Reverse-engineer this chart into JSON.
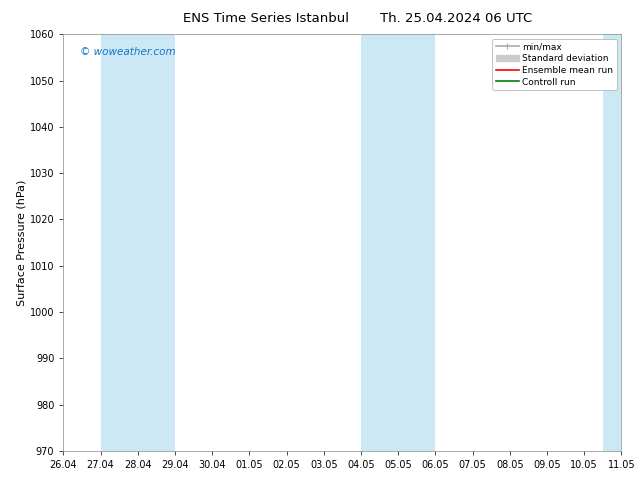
{
  "title_left": "ENS Time Series Istanbul",
  "title_right": "Th. 25.04.2024 06 UTC",
  "ylabel": "Surface Pressure (hPa)",
  "ylim": [
    970,
    1060
  ],
  "yticks": [
    970,
    980,
    990,
    1000,
    1010,
    1020,
    1030,
    1040,
    1050,
    1060
  ],
  "xtick_labels": [
    "26.04",
    "27.04",
    "28.04",
    "29.04",
    "30.04",
    "01.05",
    "02.05",
    "03.05",
    "04.05",
    "05.05",
    "06.05",
    "07.05",
    "08.05",
    "09.05",
    "10.05",
    "11.05"
  ],
  "xlim": [
    0,
    15
  ],
  "shaded_regions": [
    {
      "xmin": 1,
      "xmax": 3,
      "color": "#cce8f4"
    },
    {
      "xmin": 8,
      "xmax": 10,
      "color": "#cce8f4"
    }
  ],
  "right_shaded_region": {
    "xmin": 14.5,
    "xmax": 15,
    "color": "#cce8f4"
  },
  "watermark": "© woweather.com",
  "watermark_color": "#1a75cc",
  "background_color": "#ffffff",
  "plot_bg_color": "#ffffff",
  "legend_entries": [
    {
      "label": "min/max",
      "color": "#aaaaaa",
      "lw": 1.2,
      "ls": "-"
    },
    {
      "label": "Standard deviation",
      "color": "#cccccc",
      "lw": 7,
      "ls": "-"
    },
    {
      "label": "Ensemble mean run",
      "color": "#ff0000",
      "lw": 1.2,
      "ls": "-"
    },
    {
      "label": "Controll run",
      "color": "#008000",
      "lw": 1.2,
      "ls": "-"
    }
  ],
  "title_fontsize": 9.5,
  "ylabel_fontsize": 8,
  "tick_fontsize": 7,
  "legend_fontsize": 6.5,
  "watermark_fontsize": 7.5
}
